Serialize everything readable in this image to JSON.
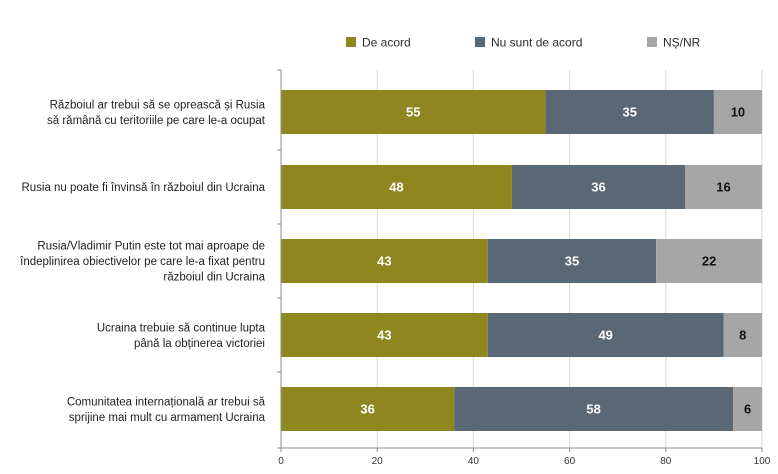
{
  "chart_data": {
    "type": "bar",
    "orientation": "horizontal",
    "stacked": true,
    "categories": [
      [
        "Războiul ar trebui să se oprească și Rusia",
        "să rămână cu teritoriile pe care le-a ocupat"
      ],
      [
        "Rusia nu poate fi învinsă în războiul din Ucraina"
      ],
      [
        "Rusia/Vladimir Putin este tot mai aproape de",
        "îndeplinirea obiectivelor pe care le-a fixat pentru",
        "războiul din Ucraina"
      ],
      [
        "Ucraina trebuie să continue lupta",
        "până la obținerea victoriei"
      ],
      [
        "Comunitatea internațională ar trebui să",
        "sprijine mai mult cu armament Ucraina"
      ]
    ],
    "series": [
      {
        "name": "De acord",
        "color": "#8f861f",
        "label_color": "#ffffff",
        "values": [
          55,
          48,
          43,
          43,
          36
        ]
      },
      {
        "name": "Nu sunt de acord",
        "color": "#5a6775",
        "label_color": "#ffffff",
        "values": [
          35,
          36,
          35,
          49,
          58
        ]
      },
      {
        "name": "NȘ/NR",
        "color": "#a6a6a6",
        "label_color": "#111111",
        "values": [
          10,
          16,
          22,
          8,
          6
        ]
      }
    ],
    "xlim": [
      0,
      100
    ],
    "xticks": [
      0,
      20,
      40,
      60,
      80,
      100
    ],
    "grid": true,
    "legend_position": "top"
  }
}
